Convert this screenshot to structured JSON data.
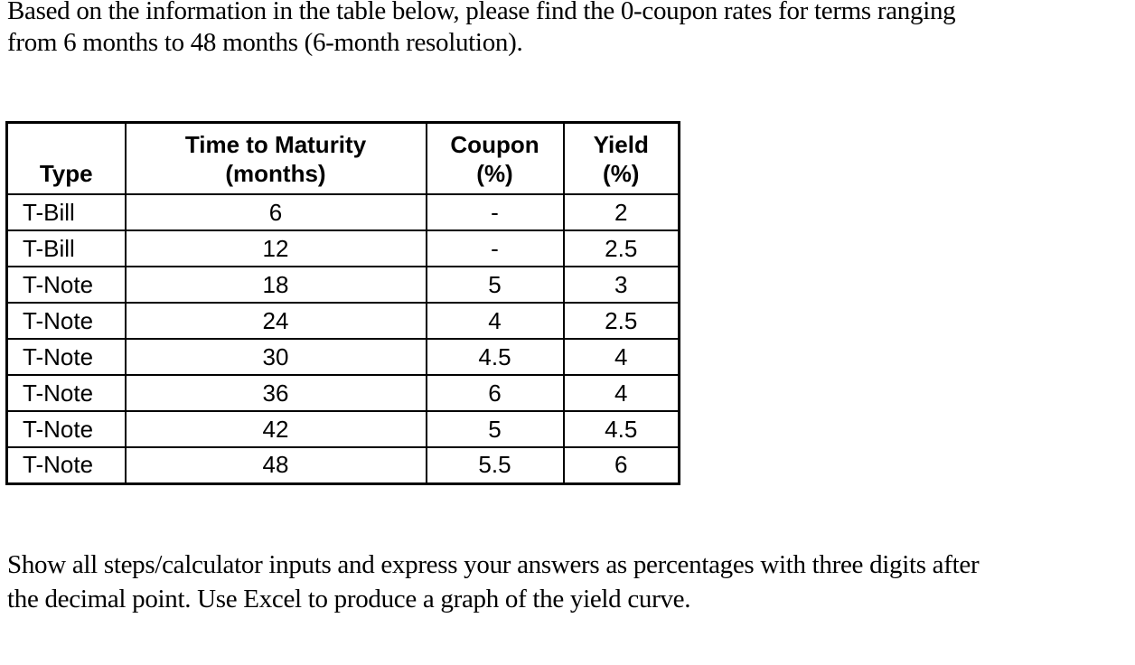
{
  "page": {
    "background_color": "#ffffff",
    "text_color": "#000000"
  },
  "intro": {
    "line1": "Based on the information in the table below, please find the 0-coupon rates for terms ranging",
    "line2": "from 6 months to 48 months (6-month resolution)."
  },
  "table": {
    "headers": {
      "type": "Type",
      "maturity_line1": "Time to Maturity",
      "maturity_line2": "(months)",
      "coupon_line1": "Coupon",
      "coupon_line2": "(%)",
      "yield_line1": "Yield",
      "yield_line2": "(%)"
    },
    "rows": [
      {
        "type": "T-Bill",
        "maturity": "6",
        "coupon": "-",
        "yield": "2"
      },
      {
        "type": "T-Bill",
        "maturity": "12",
        "coupon": "-",
        "yield": "2.5"
      },
      {
        "type": "T-Note",
        "maturity": "18",
        "coupon": "5",
        "yield": "3"
      },
      {
        "type": "T-Note",
        "maturity": "24",
        "coupon": "4",
        "yield": "2.5"
      },
      {
        "type": "T-Note",
        "maturity": "30",
        "coupon": "4.5",
        "yield": "4"
      },
      {
        "type": "T-Note",
        "maturity": "36",
        "coupon": "6",
        "yield": "4"
      },
      {
        "type": "T-Note",
        "maturity": "42",
        "coupon": "5",
        "yield": "4.5"
      },
      {
        "type": "T-Note",
        "maturity": "48",
        "coupon": "5.5",
        "yield": "6"
      }
    ]
  },
  "instructions": {
    "line1": "Show all steps/calculator inputs and express your answers as percentages with three digits after",
    "line2": "the decimal point. Use Excel to produce a graph of the yield curve."
  }
}
